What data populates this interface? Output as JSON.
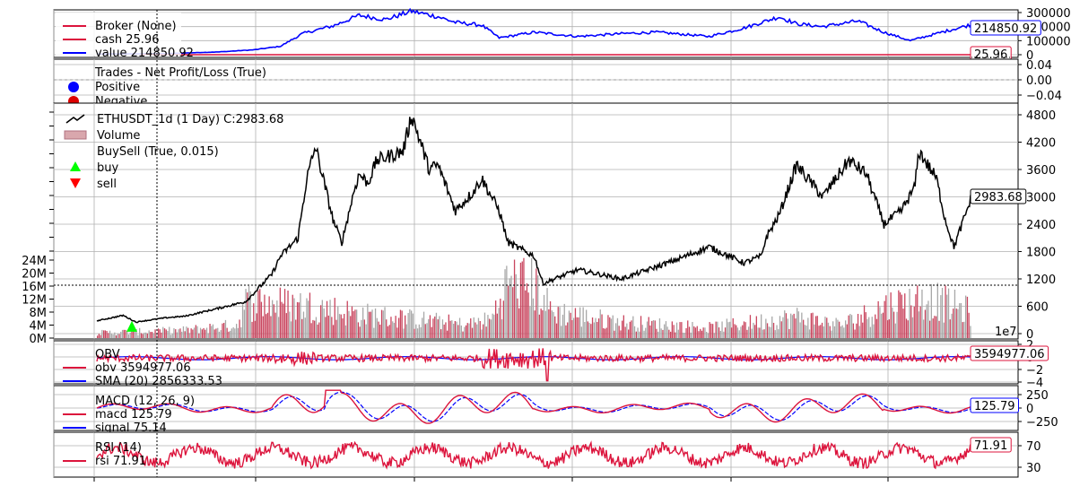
{
  "chart_data": [
    {
      "type": "line",
      "panel": "broker",
      "legend": [
        {
          "name": "Broker (None)",
          "color": "#dc143c"
        },
        {
          "name": "cash 25.96",
          "color": "#dc143c"
        },
        {
          "name": "value 214850.92",
          "color": "#0000ff"
        }
      ],
      "ylim": [
        0,
        300000
      ],
      "yticks": [
        "0",
        "100000",
        "200000",
        "300000"
      ],
      "series": [
        {
          "name": "cash",
          "color": "#dc143c",
          "last": "25.96",
          "x": [
            0.05,
            1.0
          ],
          "values": [
            26,
            26
          ]
        },
        {
          "name": "value",
          "color": "#0000ff",
          "last": "214850.92",
          "x": [
            0.0,
            0.04,
            0.08,
            0.1,
            0.14,
            0.18,
            0.21,
            0.235,
            0.26,
            0.27,
            0.3,
            0.33,
            0.36,
            0.39,
            0.41,
            0.44,
            0.46,
            0.5,
            0.55,
            0.6,
            0.64,
            0.7,
            0.74,
            0.78,
            0.8,
            0.83,
            0.87,
            0.9,
            0.93,
            0.96,
            1.0
          ],
          "values": [
            5000,
            6000,
            8000,
            12000,
            20000,
            35000,
            60000,
            150000,
            190000,
            205000,
            280000,
            250000,
            310000,
            270000,
            230000,
            210000,
            120000,
            160000,
            130000,
            150000,
            160000,
            130000,
            190000,
            270000,
            220000,
            200000,
            240000,
            160000,
            100000,
            150000,
            215000
          ]
        }
      ]
    },
    {
      "type": "scatter",
      "panel": "trades",
      "legend": [
        {
          "name": "Trades - Net Profit/Loss (True)",
          "color": null
        },
        {
          "name": "Positive",
          "color": "#0000ff"
        },
        {
          "name": "Negative",
          "color": "#dd0000"
        }
      ],
      "ylim": [
        -0.05,
        0.05
      ],
      "yticks": [
        "0.04",
        "0.00",
        "−0.04"
      ],
      "series": []
    },
    {
      "type": "line",
      "panel": "price",
      "legend": [
        {
          "name": "ETHUSDT_1d (1 Day) C:2983.68",
          "color": "#000000"
        },
        {
          "name": "Volume",
          "color": "#dc143c"
        },
        {
          "name": "BuySell (True, 0.015)",
          "color": null
        },
        {
          "name": "buy",
          "color": "#00ff00"
        },
        {
          "name": "sell",
          "color": "#ff0000"
        }
      ],
      "ylim": [
        0,
        4900
      ],
      "yticks": [
        "0",
        "600",
        "1200",
        "1800",
        "2400",
        "3000",
        "3600",
        "4200",
        "4800"
      ],
      "volume_ylim": [
        0,
        28000000
      ],
      "volume_yticks": [
        "0M",
        "4M",
        "8M",
        "12M",
        "16M",
        "20M",
        "24M"
      ],
      "volume_offset_label": "1e7",
      "last": "2983.68",
      "series": [
        {
          "name": "close",
          "color": "#000000",
          "x": [
            0.0,
            0.03,
            0.045,
            0.05,
            0.08,
            0.1,
            0.14,
            0.17,
            0.2,
            0.21,
            0.23,
            0.24,
            0.25,
            0.27,
            0.28,
            0.295,
            0.3,
            0.31,
            0.32,
            0.35,
            0.36,
            0.37,
            0.38,
            0.39,
            0.41,
            0.43,
            0.44,
            0.46,
            0.47,
            0.5,
            0.51,
            0.55,
            0.6,
            0.66,
            0.7,
            0.74,
            0.76,
            0.765,
            0.78,
            0.8,
            0.83,
            0.86,
            0.88,
            0.9,
            0.92,
            0.935,
            0.94,
            0.96,
            0.97,
            0.98,
            1.0
          ],
          "values": [
            280,
            400,
            250,
            270,
            350,
            380,
            560,
            700,
            1300,
            1700,
            2100,
            3400,
            4100,
            2500,
            2000,
            3200,
            3500,
            3300,
            3800,
            4000,
            4800,
            4200,
            3600,
            3700,
            2700,
            3100,
            3400,
            2700,
            2000,
            1700,
            1100,
            1400,
            1200,
            1600,
            1900,
            1550,
            1700,
            2100,
            2600,
            3700,
            3000,
            3800,
            3500,
            2400,
            2700,
            3200,
            4000,
            3400,
            2500,
            1900,
            2983
          ]
        },
        {
          "name": "Volume",
          "color": "#dc143c",
          "x": [
            0.0,
            0.1,
            0.16,
            0.17,
            0.25,
            0.3,
            0.4,
            0.42,
            0.45,
            0.47,
            0.5,
            0.52,
            0.6,
            0.7,
            0.75,
            0.8,
            0.85,
            0.88,
            0.9,
            0.95,
            1.0
          ],
          "values": [
            2000000,
            3000000,
            5000000,
            14000000,
            12000000,
            9000000,
            6000000,
            5000000,
            7000000,
            22000000,
            20000000,
            10000000,
            6000000,
            4000000,
            6000000,
            8000000,
            5000000,
            9000000,
            12000000,
            15000000,
            10000000
          ]
        }
      ],
      "markers": [
        {
          "label": "buy",
          "color": "#00ff00",
          "x": 0.04,
          "value": 220
        }
      ]
    },
    {
      "type": "line",
      "panel": "obv",
      "legend": [
        {
          "name": "OBV",
          "color": null
        },
        {
          "name": "obv 3594977.06",
          "color": "#dc143c"
        },
        {
          "name": "SMA (20) 2856333.53",
          "color": "#0000ff"
        }
      ],
      "ylim": [
        -4,
        2
      ],
      "yticks": [
        "2",
        "0",
        "−2",
        "−4"
      ],
      "last": "3594977.06"
    },
    {
      "type": "line",
      "panel": "macd",
      "legend": [
        {
          "name": "MACD (12, 26, 9)",
          "color": null
        },
        {
          "name": "macd 125.79",
          "color": "#dc143c"
        },
        {
          "name": "signal 75.14",
          "color": "#0000ff"
        }
      ],
      "ylim": [
        -350,
        350
      ],
      "yticks": [
        "250",
        "0",
        "−250"
      ],
      "last": "125.79"
    },
    {
      "type": "line",
      "panel": "rsi",
      "legend": [
        {
          "name": "RSI (14)",
          "color": null
        },
        {
          "name": "rsi 71.91",
          "color": "#dc143c"
        }
      ],
      "ylim": [
        15,
        95
      ],
      "yticks": [
        "70",
        "30"
      ],
      "last": "71.91"
    }
  ]
}
